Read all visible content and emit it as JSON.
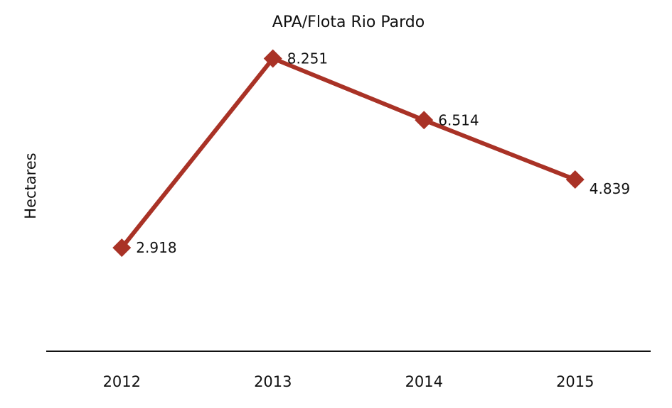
{
  "chart_data": {
    "type": "line",
    "title": "APA/Flota Rio Pardo",
    "xlabel": "",
    "ylabel": "Hectares",
    "categories": [
      "2012",
      "2013",
      "2014",
      "2015"
    ],
    "series": [
      {
        "values": [
          2918,
          8251,
          6514,
          4839
        ],
        "labels": [
          "2.918",
          "8.251",
          "6.514",
          "4.839"
        ],
        "color": "#a93226"
      }
    ],
    "ylim": [
      0,
      9000
    ],
    "grid": false,
    "legend": "none",
    "marker": "diamond",
    "data_labels": true
  }
}
